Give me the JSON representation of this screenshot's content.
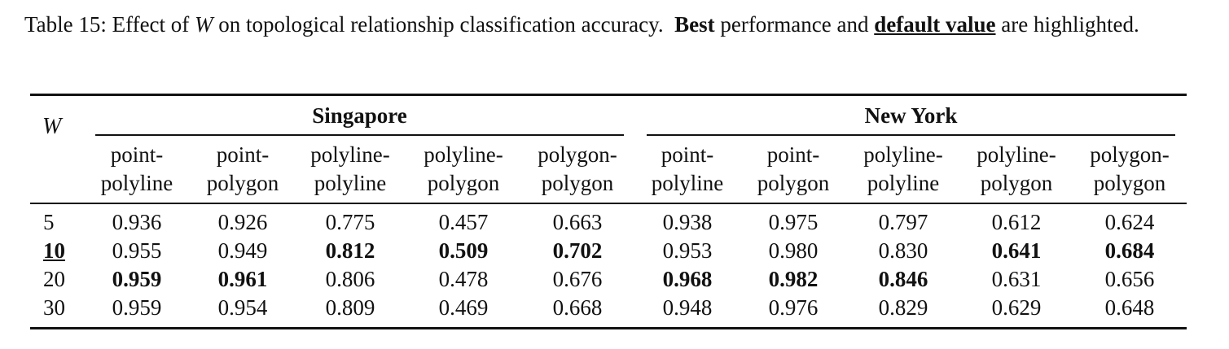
{
  "caption": {
    "label": "Table 15:",
    "pre": "Effect of",
    "var": "W",
    "mid": "on topological relationship classification accuracy.",
    "best": "Best",
    "and": "performance and",
    "default": "default value",
    "post": "are highlighted."
  },
  "table": {
    "w_header": "W",
    "groups": [
      "Singapore",
      "New York"
    ],
    "columns": [
      [
        "point-",
        "polyline"
      ],
      [
        "point-",
        "polygon"
      ],
      [
        "polyline-",
        "polyline"
      ],
      [
        "polyline-",
        "polygon"
      ],
      [
        "polygon-",
        "polygon"
      ],
      [
        "point-",
        "polyline"
      ],
      [
        "point-",
        "polygon"
      ],
      [
        "polyline-",
        "polyline"
      ],
      [
        "polyline-",
        "polygon"
      ],
      [
        "polygon-",
        "polygon"
      ]
    ],
    "default_row": 1,
    "rows": [
      {
        "w": "5",
        "values": [
          "0.936",
          "0.926",
          "0.775",
          "0.457",
          "0.663",
          "0.938",
          "0.975",
          "0.797",
          "0.612",
          "0.624"
        ],
        "best": []
      },
      {
        "w": "10",
        "values": [
          "0.955",
          "0.949",
          "0.812",
          "0.509",
          "0.702",
          "0.953",
          "0.980",
          "0.830",
          "0.641",
          "0.684"
        ],
        "best": [
          2,
          3,
          4,
          8,
          9
        ]
      },
      {
        "w": "20",
        "values": [
          "0.959",
          "0.961",
          "0.806",
          "0.478",
          "0.676",
          "0.968",
          "0.982",
          "0.846",
          "0.631",
          "0.656"
        ],
        "best": [
          0,
          1,
          5,
          6,
          7
        ]
      },
      {
        "w": "30",
        "values": [
          "0.959",
          "0.954",
          "0.809",
          "0.469",
          "0.668",
          "0.948",
          "0.976",
          "0.829",
          "0.629",
          "0.648"
        ],
        "best": []
      }
    ]
  }
}
